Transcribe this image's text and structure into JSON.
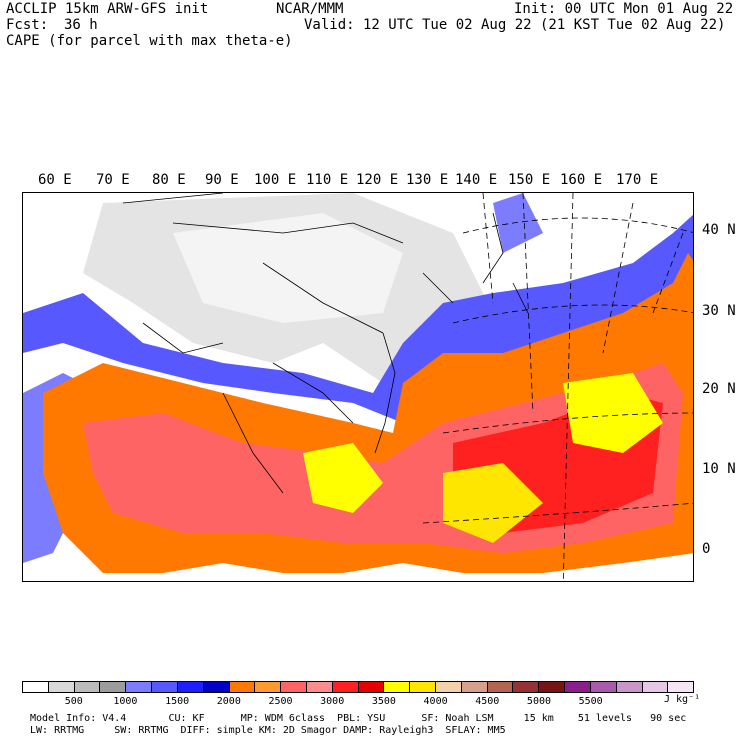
{
  "header": {
    "model": "ACCLIP 15km ARW-GFS init",
    "org": "NCAR/MMM",
    "init": "Init: 00 UTC Mon 01 Aug 22",
    "fcst_label": "Fcst:",
    "fcst_value": "36 h",
    "valid": "Valid: 12 UTC Tue 02 Aug 22 (21 KST Tue 02 Aug 22)",
    "field": "CAPE (for parcel with max theta-e)"
  },
  "map": {
    "lon_labels": [
      "60 E",
      "70 E",
      "80 E",
      "90 E",
      "100 E",
      "110 E",
      "120 E",
      "130 E",
      "140 E",
      "150 E",
      "160 E",
      "170 E"
    ],
    "lat_labels": [
      "40 N",
      "30 N",
      "20 N",
      "10 N",
      "0"
    ]
  },
  "colorbar": {
    "colors": [
      "#ffffff",
      "#d9d9d9",
      "#bcbcbc",
      "#9c9c9c",
      "#7c7cff",
      "#5858ff",
      "#1e1eff",
      "#0000c8",
      "#ff7800",
      "#ff9b2d",
      "#ff6464",
      "#ff8c8c",
      "#ff2020",
      "#e60000",
      "#ffff00",
      "#ffe600",
      "#f2d2a8",
      "#d7a08c",
      "#b46450",
      "#963232",
      "#7a1414",
      "#8c1e8c",
      "#aa5aaa",
      "#c896c8",
      "#e6c8e6",
      "#f5e6f5"
    ],
    "labels": [
      "500",
      "1000",
      "1500",
      "2000",
      "2500",
      "3000",
      "3500",
      "4000",
      "4500",
      "5000",
      "5500"
    ],
    "unit": "J kg⁻¹"
  },
  "footer": {
    "line1": "Model Info: V4.4       CU: KF      MP: WDM 6class  PBL: YSU      SF: Noah LSM     15 km    51 levels   90 sec",
    "line2": "LW: RRTMG     SW: RRTMG  DIFF: simple KM: 2D Smagor DAMP: Rayleigh3  SFLAY: MM5"
  }
}
